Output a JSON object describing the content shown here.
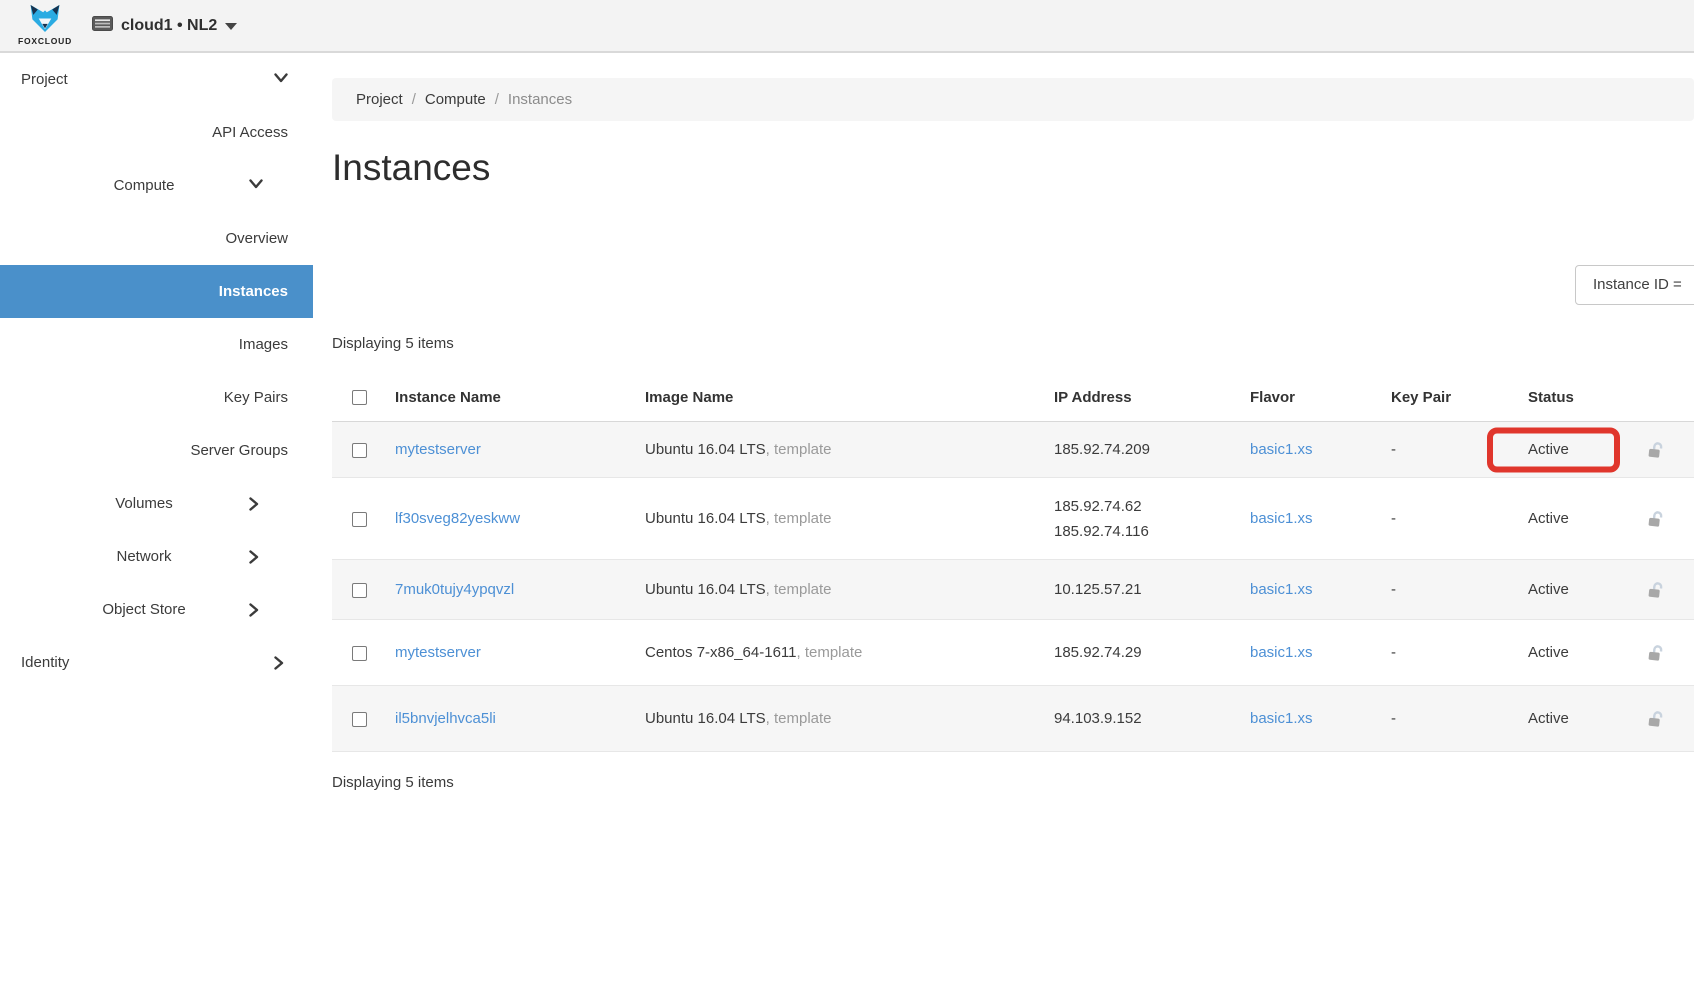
{
  "colors": {
    "accent_blue": "#4a90ca",
    "link_blue": "#4d90d5",
    "highlight_red": "#e0362c"
  },
  "topbar": {
    "brand": "FOXCLOUD",
    "region_selector": {
      "label": "cloud1 • NL2"
    }
  },
  "sidebar": {
    "items": [
      {
        "label": "Project",
        "level": 1,
        "caret": "down",
        "active": false
      },
      {
        "label": "API Access",
        "level": 3,
        "caret": "",
        "active": false
      },
      {
        "label": "Compute",
        "level": 2,
        "caret": "down",
        "active": false
      },
      {
        "label": "Overview",
        "level": 3,
        "caret": "",
        "active": false
      },
      {
        "label": "Instances",
        "level": 3,
        "caret": "",
        "active": true
      },
      {
        "label": "Images",
        "level": 3,
        "caret": "",
        "active": false
      },
      {
        "label": "Key Pairs",
        "level": 3,
        "caret": "",
        "active": false
      },
      {
        "label": "Server Groups",
        "level": 3,
        "caret": "",
        "active": false
      },
      {
        "label": "Volumes",
        "level": 2,
        "caret": "right",
        "active": false
      },
      {
        "label": "Network",
        "level": 2,
        "caret": "right",
        "active": false
      },
      {
        "label": "Object Store",
        "level": 2,
        "caret": "right",
        "active": false
      },
      {
        "label": "Identity",
        "level": 1,
        "caret": "right",
        "active": false
      }
    ]
  },
  "breadcrumb": {
    "separator": "/",
    "items": [
      {
        "label": "Project",
        "current": false
      },
      {
        "label": "Compute",
        "current": false
      },
      {
        "label": "Instances",
        "current": true
      }
    ]
  },
  "page": {
    "title": "Instances",
    "count_top": "Displaying 5 items",
    "count_bottom": "Displaying 5 items"
  },
  "filter": {
    "label": "Instance ID ="
  },
  "table": {
    "headers": [
      "Instance Name",
      "Image Name",
      "IP Address",
      "Flavor",
      "Key Pair",
      "Status"
    ],
    "rows": [
      {
        "name": "mytestserver",
        "image": "Ubuntu 16.04 LTS",
        "image_suffix": ", template",
        "ips": [
          "185.92.74.209"
        ],
        "flavor": "basic1.xs",
        "key_pair": "-",
        "status": "Active",
        "highlighted": true
      },
      {
        "name": "lf30sveg82yeskww",
        "image": "Ubuntu 16.04 LTS",
        "image_suffix": ", template",
        "ips": [
          "185.92.74.62",
          "185.92.74.116"
        ],
        "flavor": "basic1.xs",
        "key_pair": "-",
        "status": "Active",
        "highlighted": false
      },
      {
        "name": "7muk0tujy4ypqvzl",
        "image": "Ubuntu 16.04 LTS",
        "image_suffix": ", template",
        "ips": [
          "10.125.57.21"
        ],
        "flavor": "basic1.xs",
        "key_pair": "-",
        "status": "Active",
        "highlighted": false
      },
      {
        "name": "mytestserver",
        "image": "Centos 7-x86_64-1611",
        "image_suffix": ", template",
        "ips": [
          "185.92.74.29"
        ],
        "flavor": "basic1.xs",
        "key_pair": "-",
        "status": "Active",
        "highlighted": false
      },
      {
        "name": "il5bnvjelhvca5li",
        "image": "Ubuntu 16.04 LTS",
        "image_suffix": ", template",
        "ips": [
          "94.103.9.152"
        ],
        "flavor": "basic1.xs",
        "key_pair": "-",
        "status": "Active",
        "highlighted": false
      }
    ]
  }
}
